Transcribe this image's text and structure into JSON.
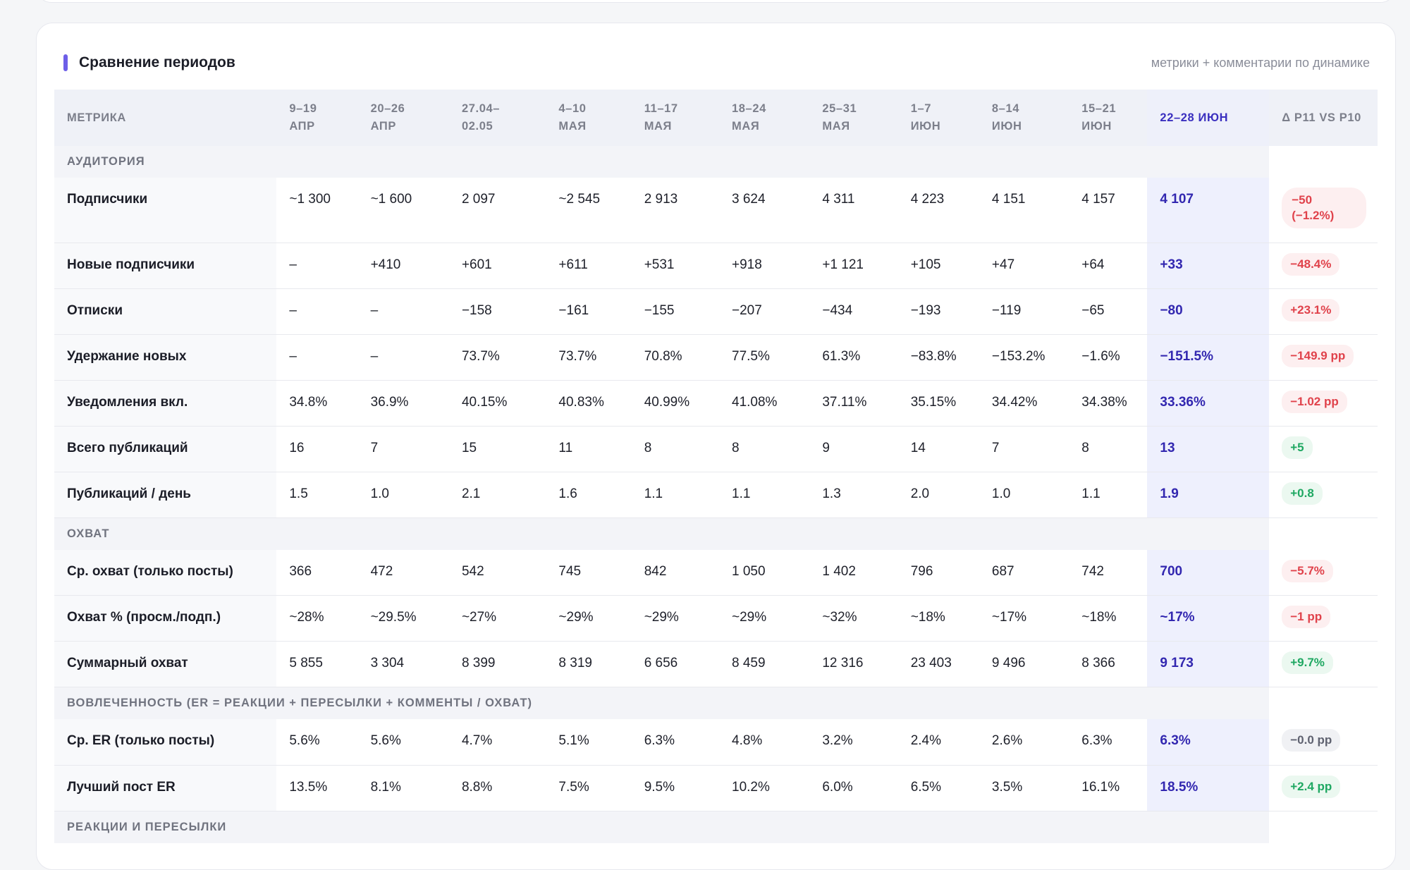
{
  "card": {
    "title": "Сравнение периодов",
    "subtitle": "метрики + комментарии по динамике"
  },
  "table": {
    "headers": [
      {
        "l1": "Метрика",
        "l2": ""
      },
      {
        "l1": "9–19",
        "l2": "апр"
      },
      {
        "l1": "20–26",
        "l2": "апр"
      },
      {
        "l1": "27.04–",
        "l2": "02.05"
      },
      {
        "l1": "4–10",
        "l2": "мая"
      },
      {
        "l1": "11–17",
        "l2": "мая"
      },
      {
        "l1": "18–24",
        "l2": "мая"
      },
      {
        "l1": "25–31",
        "l2": "мая"
      },
      {
        "l1": "1–7",
        "l2": "июн"
      },
      {
        "l1": "8–14",
        "l2": "июн"
      },
      {
        "l1": "15–21",
        "l2": "июн"
      },
      {
        "l1": "22–28 июн",
        "l2": ""
      },
      {
        "l1": "Δ P11 vs P10",
        "l2": ""
      }
    ],
    "sections": {
      "audience": "Аудитория",
      "reach": "Охват",
      "engagement": "Вовлеченность (ER = реакции + пересылки + комменты / охват)",
      "reactions": "Реакции и пересылки"
    },
    "rows": [
      {
        "metric": "Подписчики",
        "values": [
          "~1 300",
          "~1 600",
          "2 097",
          "~2 545",
          "2 913",
          "3 624",
          "4 311",
          "4 223",
          "4 151",
          "4 157"
        ],
        "current": "4 107",
        "delta": "−50 (−1.2%)",
        "delta_kind": "neg"
      },
      {
        "metric": "Новые подписчики",
        "values": [
          "–",
          "+410",
          "+601",
          "+611",
          "+531",
          "+918",
          "+1 121",
          "+105",
          "+47",
          "+64"
        ],
        "current": "+33",
        "delta": "−48.4%",
        "delta_kind": "neg"
      },
      {
        "metric": "Отписки",
        "values": [
          "–",
          "–",
          "−158",
          "−161",
          "−155",
          "−207",
          "−434",
          "−193",
          "−119",
          "−65"
        ],
        "current": "−80",
        "delta": "+23.1%",
        "delta_kind": "neg"
      },
      {
        "metric": "Удержание новых",
        "values": [
          "–",
          "–",
          "73.7%",
          "73.7%",
          "70.8%",
          "77.5%",
          "61.3%",
          "−83.8%",
          "−153.2%",
          "−1.6%"
        ],
        "current": "−151.5%",
        "delta": "−149.9 pp",
        "delta_kind": "neg"
      },
      {
        "metric": "Уведомления вкл.",
        "values": [
          "34.8%",
          "36.9%",
          "40.15%",
          "40.83%",
          "40.99%",
          "41.08%",
          "37.11%",
          "35.15%",
          "34.42%",
          "34.38%"
        ],
        "current": "33.36%",
        "delta": "−1.02 pp",
        "delta_kind": "neg"
      },
      {
        "metric": "Всего публикаций",
        "values": [
          "16",
          "7",
          "15",
          "11",
          "8",
          "8",
          "9",
          "14",
          "7",
          "8"
        ],
        "current": "13",
        "delta": "+5",
        "delta_kind": "pos"
      },
      {
        "metric": "Публикаций / день",
        "values": [
          "1.5",
          "1.0",
          "2.1",
          "1.6",
          "1.1",
          "1.1",
          "1.3",
          "2.0",
          "1.0",
          "1.1"
        ],
        "current": "1.9",
        "delta": "+0.8",
        "delta_kind": "pos"
      },
      {
        "metric": "Ср. охват (только посты)",
        "values": [
          "366",
          "472",
          "542",
          "745",
          "842",
          "1 050",
          "1 402",
          "796",
          "687",
          "742"
        ],
        "current": "700",
        "delta": "−5.7%",
        "delta_kind": "neg"
      },
      {
        "metric": "Охват % (просм./подп.)",
        "values": [
          "~28%",
          "~29.5%",
          "~27%",
          "~29%",
          "~29%",
          "~29%",
          "~32%",
          "~18%",
          "~17%",
          "~18%"
        ],
        "current": "~17%",
        "delta": "−1 pp",
        "delta_kind": "neg"
      },
      {
        "metric": "Суммарный охват",
        "values": [
          "5 855",
          "3 304",
          "8 399",
          "8 319",
          "6 656",
          "8 459",
          "12 316",
          "23 403",
          "9 496",
          "8 366"
        ],
        "current": "9 173",
        "delta": "+9.7%",
        "delta_kind": "pos"
      },
      {
        "metric": "Ср. ER (только посты)",
        "values": [
          "5.6%",
          "5.6%",
          "4.7%",
          "5.1%",
          "6.3%",
          "4.8%",
          "3.2%",
          "2.4%",
          "2.6%",
          "6.3%"
        ],
        "current": "6.3%",
        "delta": "−0.0 pp",
        "delta_kind": "neu"
      },
      {
        "metric": "Лучший пост ER",
        "values": [
          "13.5%",
          "8.1%",
          "8.8%",
          "7.5%",
          "9.5%",
          "10.2%",
          "6.0%",
          "6.5%",
          "3.5%",
          "16.1%"
        ],
        "current": "18.5%",
        "delta": "+2.4 pp",
        "delta_kind": "pos"
      }
    ]
  },
  "colors": {
    "accent": "#6d5ee8",
    "current_text": "#3227b0",
    "negative": "#e0424b",
    "positive": "#1fa862",
    "neutral": "#5f6270"
  }
}
